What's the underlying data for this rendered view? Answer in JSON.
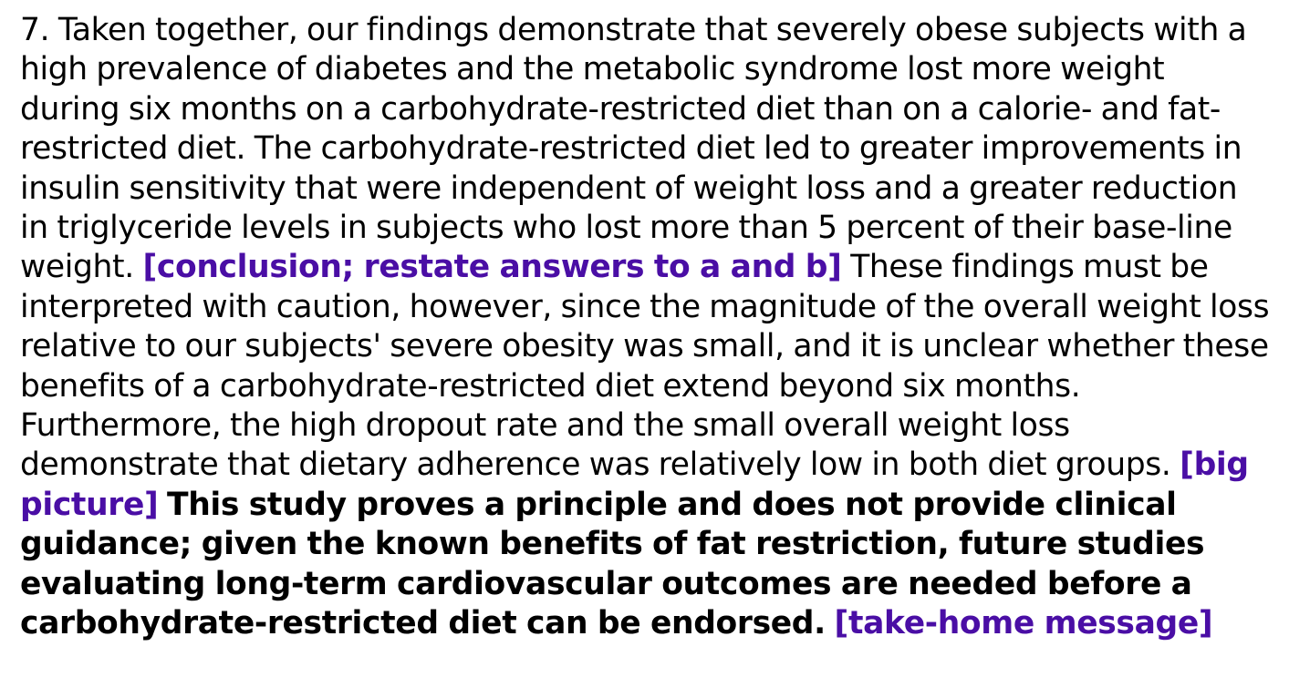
{
  "paragraph": {
    "number": "7.",
    "text_1": "Taken together, our findings demonstrate that severely obese subjects with a high prevalence of diabetes and the metabolic syndrome lost more weight during six months on a carbohydrate-restricted diet than on a calorie- and fat-restricted diet. The carbohydrate-restricted diet led to greater improvements in insulin sensitivity that were independent of weight loss and a greater reduction in triglyceride levels in subjects who lost more than 5 percent of their base-line weight.",
    "annotation_1": "[conclusion; restate answers to a and b]",
    "text_2": "These findings must be interpreted with caution, however, since the magnitude of the overall weight loss relative to our subjects' severe obesity was small, and it is unclear whether these benefits of a carbohydrate-restricted diet extend beyond six months. Furthermore, the high dropout rate and the small overall weight loss demonstrate that dietary adherence was relatively low in both diet groups.",
    "annotation_2": "[big picture]",
    "bold_text": "This study proves a principle and does not provide clinical guidance; given the known benefits of fat restriction, future studies evaluating long-term cardiovascular outcomes are needed before a carbohydrate-restricted diet can be endorsed.",
    "annotation_3": "[take-home message]"
  },
  "colors": {
    "annotation": "#4a0ea5",
    "text": "#000000",
    "background": "#ffffff"
  }
}
